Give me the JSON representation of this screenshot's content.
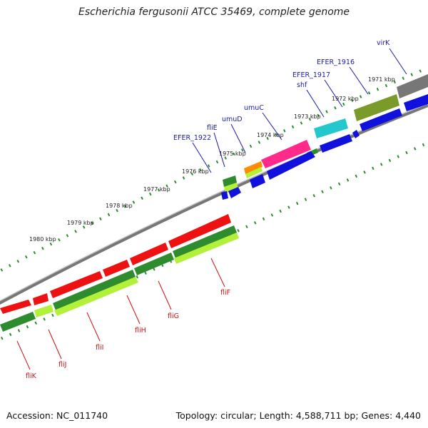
{
  "title": "Escherichia fergusonii ATCC 35469, complete genome",
  "footer": {
    "accession": "Accession: NC_011740",
    "summary": "Topology: circular; Length: 4,588,711 bp; Genes: 4,440"
  },
  "colors": {
    "backbone": "#8a8a8a",
    "tick": "#2e8b2e",
    "forward_label": "#1a1aa8",
    "reverse_label": "#cc1111",
    "red_gene": "#ee1111",
    "green_gene": "#2e8b2e",
    "lime_gene": "#b2f03a",
    "blue_gene": "#1111dd",
    "cyan_gene": "#22c8cc",
    "pink_gene": "#ff2a8a",
    "olive_gene": "#7a9a2a",
    "orange_gene": "#ff8c00",
    "grey_gene": "#777777"
  },
  "scale_labels": [
    "1971 kbp",
    "1972 kbp",
    "1973 kbp",
    "1974 kbp",
    "1975 kbp",
    "1976 kbp",
    "1977 kbp",
    "1978 kbp",
    "1979 kbp",
    "1980 kbp"
  ],
  "forward_gene_labels": [
    "virK",
    "EFER_1916",
    "EFER_1917",
    "shf",
    "umuC",
    "umuD",
    "fliE",
    "EFER_1922"
  ],
  "reverse_gene_labels": [
    "fliF",
    "fliG",
    "fliH",
    "fliI",
    "fliJ",
    "fliK"
  ]
}
